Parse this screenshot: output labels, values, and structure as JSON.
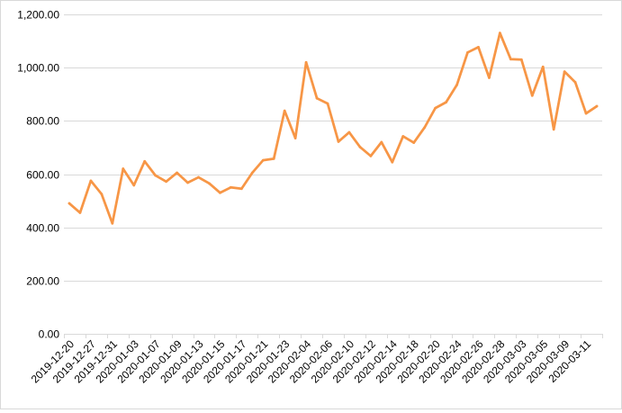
{
  "chart_data": {
    "type": "line",
    "title": "",
    "xlabel": "",
    "ylabel": "",
    "ylim": [
      0,
      1200
    ],
    "y_ticks": [
      0,
      200,
      400,
      600,
      800,
      1000,
      1200
    ],
    "y_tick_labels": [
      "0.00",
      "200.00",
      "400.00",
      "600.00",
      "800.00",
      "1,000.00",
      "1,200.00"
    ],
    "grid": true,
    "legend": "none",
    "line_color": "#F79646",
    "x_tick_labels": [
      "2019-12-20",
      "2019-12-27",
      "2019-12-31",
      "2020-01-03",
      "2020-01-07",
      "2020-01-09",
      "2020-01-13",
      "2020-01-15",
      "2020-01-17",
      "2020-01-21",
      "2020-01-23",
      "2020-02-04",
      "2020-02-06",
      "2020-02-10",
      "2020-02-12",
      "2020-02-14",
      "2020-02-18",
      "2020-02-20",
      "2020-02-24",
      "2020-02-26",
      "2020-02-28",
      "2020-03-03",
      "2020-03-05",
      "2020-03-09",
      "2020-03-11"
    ],
    "series": [
      {
        "values": [
          490,
          455,
          575,
          525,
          415,
          620,
          558,
          648,
          595,
          572,
          605,
          568,
          588,
          565,
          530,
          550,
          545,
          605,
          652,
          658,
          838,
          735,
          1020,
          885,
          865,
          722,
          757,
          702,
          668,
          720,
          645,
          742,
          718,
          775,
          848,
          870,
          935,
          1057,
          1077,
          962,
          1130,
          1032,
          1030,
          895,
          1003,
          768,
          985,
          945,
          828,
          855
        ]
      }
    ]
  }
}
